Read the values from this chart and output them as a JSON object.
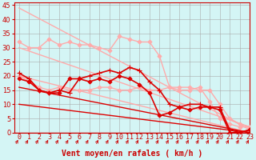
{
  "bg_color": "#d4f5f5",
  "grid_color": "#aaaaaa",
  "xlim": [
    -0.5,
    23
  ],
  "ylim": [
    0,
    46
  ],
  "yticks": [
    0,
    5,
    10,
    15,
    20,
    25,
    30,
    35,
    40,
    45
  ],
  "xticks": [
    0,
    1,
    2,
    3,
    4,
    5,
    6,
    7,
    8,
    9,
    10,
    11,
    12,
    13,
    14,
    15,
    16,
    17,
    18,
    19,
    20,
    21,
    22,
    23
  ],
  "xlabel": "Vent moyen/en rafales ( km/h )",
  "xlabel_color": "#cc0000",
  "xlabel_fontsize": 7,
  "tick_color": "#cc0000",
  "tick_fontsize": 6,
  "lines": [
    {
      "x": [
        0,
        23
      ],
      "y": [
        44,
        1
      ],
      "color": "#ffaaaa",
      "lw": 1.0,
      "marker": null
    },
    {
      "x": [
        0,
        23
      ],
      "y": [
        30,
        2
      ],
      "color": "#ffaaaa",
      "lw": 1.0,
      "marker": null
    },
    {
      "x": [
        0,
        23
      ],
      "y": [
        20,
        0
      ],
      "color": "#ffaaaa",
      "lw": 1.0,
      "marker": null
    },
    {
      "x": [
        0,
        1,
        2,
        3,
        4,
        5,
        6,
        7,
        8,
        9,
        10,
        11,
        12,
        13,
        14,
        15,
        16,
        17,
        18,
        19,
        20,
        21,
        22,
        23
      ],
      "y": [
        32,
        30,
        30,
        33,
        31,
        32,
        31,
        31,
        30,
        29,
        34,
        33,
        32,
        32,
        27,
        16,
        16,
        16,
        15,
        15,
        10,
        5,
        3,
        2
      ],
      "color": "#ffaaaa",
      "lw": 1.0,
      "marker": "D",
      "ms": 2.5
    },
    {
      "x": [
        0,
        1,
        2,
        3,
        4,
        5,
        6,
        7,
        8,
        9,
        10,
        11,
        12,
        13,
        14,
        15,
        16,
        17,
        18,
        19,
        20,
        21,
        22,
        23
      ],
      "y": [
        20,
        18,
        16,
        15,
        16,
        15,
        15,
        15,
        16,
        16,
        15,
        15,
        16,
        15,
        15,
        16,
        15,
        15,
        16,
        11,
        5,
        3,
        2,
        2
      ],
      "color": "#ffaaaa",
      "lw": 1.0,
      "marker": "D",
      "ms": 2.5
    },
    {
      "x": [
        0,
        1,
        2,
        3,
        4,
        5,
        6,
        7,
        8,
        9,
        10,
        11,
        12,
        13,
        14,
        15,
        16,
        17,
        18,
        19,
        20,
        21,
        22,
        23
      ],
      "y": [
        21,
        19,
        15,
        14,
        15,
        14,
        19,
        20,
        21,
        22,
        21,
        23,
        22,
        18,
        15,
        10,
        9,
        10,
        10,
        9,
        9,
        1,
        0,
        1
      ],
      "color": "#dd0000",
      "lw": 1.2,
      "marker": "+",
      "ms": 4
    },
    {
      "x": [
        0,
        1,
        2,
        3,
        4,
        5,
        6,
        7,
        8,
        9,
        10,
        11,
        12,
        13,
        14,
        15,
        16,
        17,
        18,
        19,
        20,
        21,
        22,
        23
      ],
      "y": [
        19,
        18,
        15,
        14,
        14,
        19,
        19,
        18,
        19,
        18,
        20,
        19,
        17,
        14,
        6,
        7,
        9,
        8,
        9,
        9,
        8,
        0,
        0,
        1
      ],
      "color": "#dd0000",
      "lw": 1.2,
      "marker": "D",
      "ms": 2.5
    },
    {
      "x": [
        0,
        23
      ],
      "y": [
        16,
        0
      ],
      "color": "#dd0000",
      "lw": 1.0,
      "marker": null
    },
    {
      "x": [
        0,
        23
      ],
      "y": [
        10,
        0
      ],
      "color": "#dd0000",
      "lw": 1.0,
      "marker": null
    }
  ]
}
